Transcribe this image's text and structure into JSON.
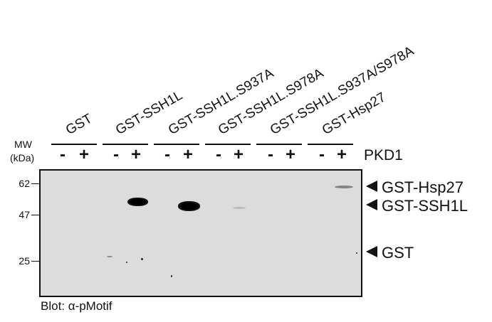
{
  "lanes": {
    "gst": "GST",
    "ssh1l": "GST-SSH1L",
    "s937a": "GST-SSH1L.S937A",
    "s978a": "GST-SSH1L.S978A",
    "double": "GST-SSH1L.S937A/S978A",
    "hsp27": "GST-Hsp27"
  },
  "signs": {
    "minus": "-",
    "plus": "+"
  },
  "axis": {
    "mw_line1": "MW",
    "mw_line2": "(kDa)"
  },
  "treatment": "PKD1",
  "markers": [
    "62",
    "47",
    "25"
  ],
  "bands": {
    "hsp27": "GST-Hsp27",
    "ssh1l": "GST-SSH1L",
    "gst": "GST"
  },
  "blot_label": "Blot: α-pMotif"
}
